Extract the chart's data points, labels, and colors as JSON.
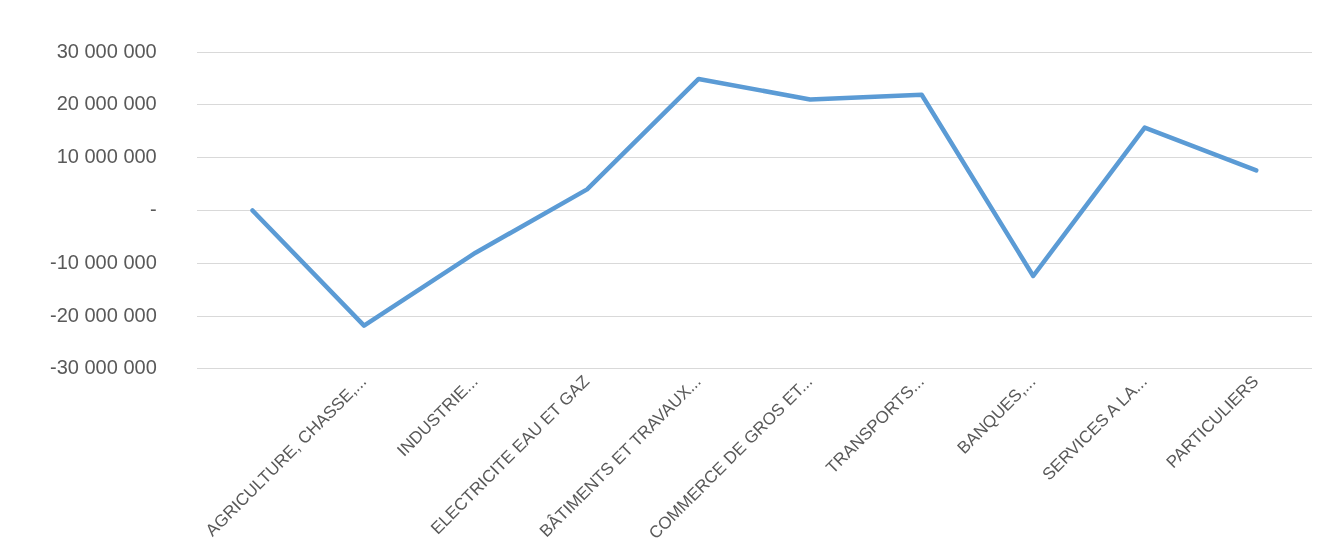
{
  "chart_data": {
    "type": "line",
    "categories": [
      null,
      "AGRICULTURE, CHASSE,...",
      "INDUSTRIE...",
      "ELECTRICITE EAU ET GAZ",
      "BÂTIMENTS ET TRAVAUX...",
      "COMMERCE DE GROS ET...",
      "TRANSPORTS...",
      "BANQUES,...",
      "SERVICES A LA...",
      "PARTICULIERS"
    ],
    "series": [
      {
        "color": "#5b9bd5",
        "values": [
          0,
          -21800000,
          -8000000,
          4000000,
          24900000,
          21000000,
          21900000,
          -12400000,
          15700000,
          7600000
        ]
      }
    ],
    "ylim": [
      -30000000,
      30000000
    ],
    "yticks": [
      {
        "value": -30000000,
        "label": "-30 000 000"
      },
      {
        "value": -20000000,
        "label": "-20 000 000"
      },
      {
        "value": -10000000,
        "label": "-10 000 000"
      },
      {
        "value": 0,
        "label": "-"
      },
      {
        "value": 10000000,
        "label": "10 000 000"
      },
      {
        "value": 20000000,
        "label": "20 000 000"
      },
      {
        "value": 30000000,
        "label": "30 000 000"
      }
    ],
    "grid": "y",
    "legend": false,
    "marker": "none",
    "line_style": "solid"
  }
}
